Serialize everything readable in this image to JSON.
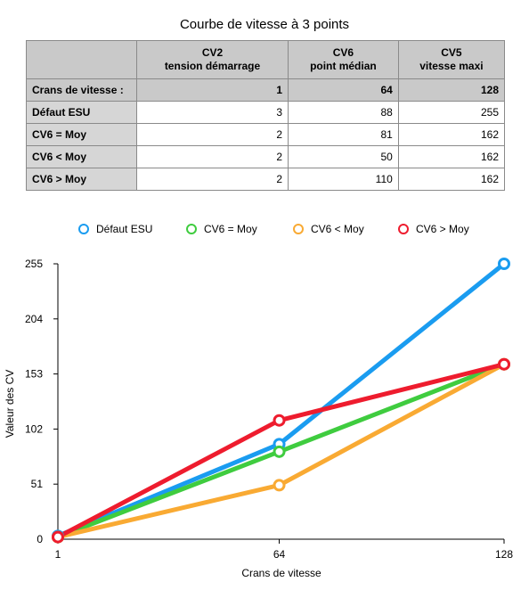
{
  "chart_title": "Courbe de vitesse à 3 points",
  "table": {
    "header": [
      {
        "line1": "",
        "line2": ""
      },
      {
        "line1": "CV2",
        "line2": "tension démarrage"
      },
      {
        "line1": "CV6",
        "line2": "point médian"
      },
      {
        "line1": "CV5",
        "line2": "vitesse maxi"
      }
    ],
    "crans_row": {
      "label": "Crans de vitesse :",
      "values": [
        "1",
        "64",
        "128"
      ]
    },
    "rows": [
      {
        "label": "Défaut ESU",
        "values": [
          "3",
          "88",
          "255"
        ]
      },
      {
        "label": "CV6 = Moy",
        "values": [
          "2",
          "81",
          "162"
        ]
      },
      {
        "label": "CV6 < Moy",
        "values": [
          "2",
          "50",
          "162"
        ]
      },
      {
        "label": "CV6 > Moy",
        "values": [
          "2",
          "110",
          "162"
        ]
      }
    ]
  },
  "chart_data": {
    "type": "line",
    "title": "Courbe de vitesse à 3 points",
    "xlabel": "Crans de vitesse",
    "ylabel": "Valeur des CV",
    "x": [
      1,
      64,
      128
    ],
    "x_ticks": [
      1,
      64,
      128
    ],
    "y_ticks": [
      0,
      51,
      102,
      153,
      204,
      255
    ],
    "xlim": [
      1,
      128
    ],
    "ylim": [
      0,
      255
    ],
    "legend_position": "top",
    "grid": false,
    "series": [
      {
        "name": "Défaut ESU",
        "color": "#1a9cf0",
        "values": [
          3,
          88,
          255
        ]
      },
      {
        "name": "CV6 = Moy",
        "color": "#3fcc3f",
        "values": [
          2,
          81,
          162
        ]
      },
      {
        "name": "CV6 < Moy",
        "color": "#f9aa33",
        "values": [
          2,
          50,
          162
        ]
      },
      {
        "name": "CV6 > Moy",
        "color": "#ee1c2e",
        "values": [
          2,
          110,
          162
        ]
      }
    ]
  }
}
